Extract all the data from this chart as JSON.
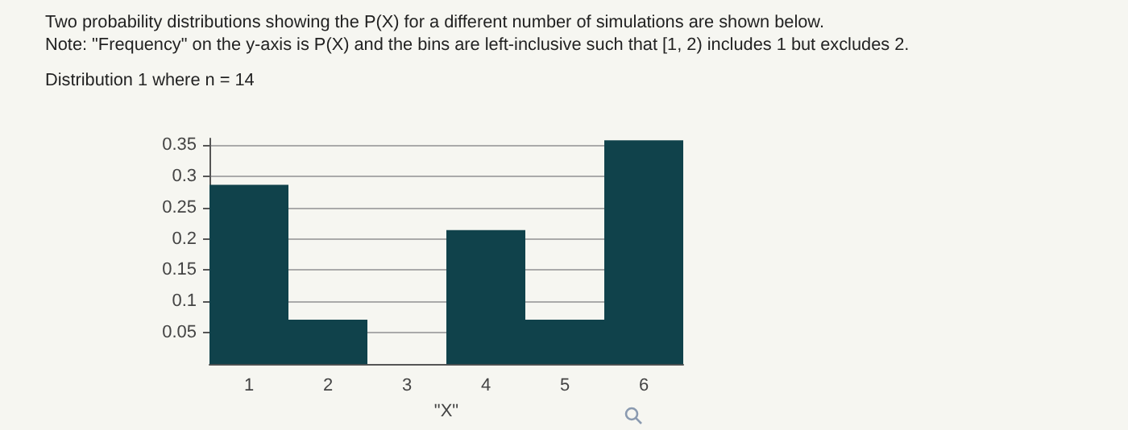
{
  "chart_data": {
    "type": "bar",
    "title": "Two probability distributions showing the P(X) for a different number of simulations are shown below.",
    "subtitle": "Note: \"Frequency\" on the y-axis is P(X) and the bins are left-inclusive such that [1, 2) includes 1 but excludes 2.",
    "annotations": [
      "Distribution 1 where n = 14"
    ],
    "xlabel": "\"X\"",
    "categories": [
      "1",
      "2",
      "3",
      "4",
      "5",
      "6"
    ],
    "values": [
      0.286,
      0.071,
      0,
      0.214,
      0.071,
      0.357
    ],
    "color": "#10424b",
    "ylim": [
      0,
      0.36
    ],
    "yticks": [
      0.05,
      0.1,
      0.15,
      0.2,
      0.25,
      0.3,
      0.35
    ],
    "grid": "y"
  }
}
